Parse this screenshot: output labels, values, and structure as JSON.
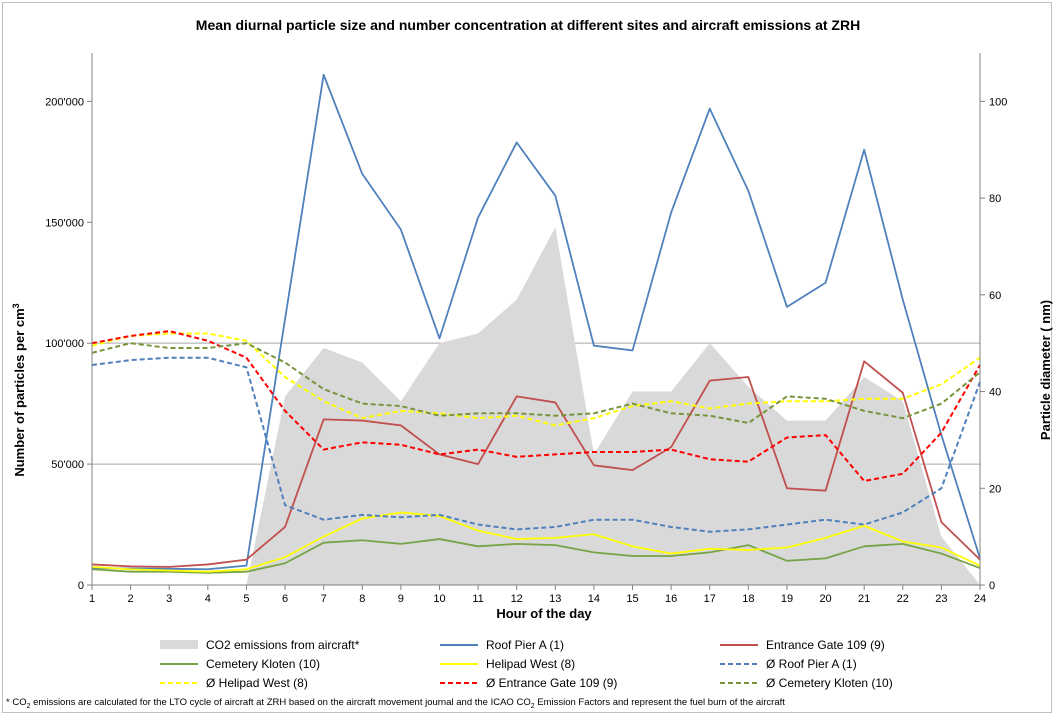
{
  "chart_data": {
    "type": "line",
    "title": "Mean diurnal particle size and number concentration at different sites and aircraft emissions at ZRH",
    "xlabel": "Hour of the day",
    "ylabel_left": "Number of particles per cm",
    "ylabel_left_sup": "3",
    "ylabel_right": "Particle diameter ( nm)",
    "x": [
      1,
      2,
      3,
      4,
      5,
      6,
      7,
      8,
      9,
      10,
      11,
      12,
      13,
      14,
      15,
      16,
      17,
      18,
      19,
      20,
      21,
      22,
      23,
      24
    ],
    "y_left_lim": [
      0,
      220000
    ],
    "y_left_ticks": [
      0,
      50000,
      100000,
      150000,
      200000
    ],
    "y_left_tick_labels": [
      "0",
      "50'000",
      "100'000",
      "150'000",
      "200'000"
    ],
    "y_right_lim": [
      0,
      110
    ],
    "y_right_ticks": [
      0,
      20,
      40,
      60,
      80,
      100
    ],
    "y_right_tick_labels": [
      "0",
      "20",
      "40",
      "60",
      "80",
      "100"
    ],
    "grid_left_values": [
      50000,
      100000
    ],
    "legend_position": "bottom",
    "series": [
      {
        "name": "CO2 emissions from aircraft*",
        "kind": "area",
        "axis": "right",
        "color": "#d9d9d9",
        "values": [
          0,
          0,
          0,
          0,
          0,
          39,
          49,
          46,
          38,
          50,
          52,
          59,
          74,
          27,
          40,
          40,
          50,
          41,
          34,
          34,
          43,
          38,
          10,
          0
        ]
      },
      {
        "name": "Roof Pier A (1)",
        "kind": "line",
        "axis": "left",
        "color": "#4f81bd",
        "dash": false,
        "values": [
          7000,
          6800,
          6700,
          6500,
          8000,
          110000,
          211000,
          170000,
          147000,
          102000,
          152000,
          183000,
          161000,
          99000,
          97000,
          154000,
          197000,
          163000,
          115000,
          125000,
          180000,
          118000,
          62000,
          11000
        ]
      },
      {
        "name": "Entrance Gate 109 (9)",
        "kind": "line",
        "axis": "left",
        "color": "#c0504d",
        "dash": false,
        "values": [
          8500,
          7700,
          7500,
          8500,
          10500,
          24000,
          68500,
          68000,
          66000,
          54000,
          50000,
          78000,
          75500,
          49500,
          47500,
          57000,
          84500,
          86000,
          40000,
          39000,
          92500,
          79500,
          26000,
          10500
        ]
      },
      {
        "name": "Cemetery Kloten (10)",
        "kind": "line",
        "axis": "left",
        "color": "#77a347",
        "dash": false,
        "values": [
          6500,
          5500,
          5500,
          5000,
          5500,
          9000,
          17500,
          18500,
          17000,
          19000,
          16000,
          17000,
          16500,
          13500,
          12000,
          12000,
          13500,
          16500,
          10000,
          11000,
          16000,
          17000,
          13000,
          7000
        ]
      },
      {
        "name": "Helipad West (8)",
        "kind": "line",
        "axis": "left",
        "color": "#ffff00",
        "dash": false,
        "values": [
          7500,
          6500,
          6000,
          5500,
          6500,
          11500,
          20000,
          27500,
          30000,
          28500,
          22500,
          19000,
          19500,
          21000,
          16000,
          13000,
          15000,
          14500,
          15500,
          19500,
          24500,
          18000,
          15500,
          8000
        ]
      },
      {
        "name": "Ø Roof Pier A (1)",
        "kind": "line",
        "axis": "right",
        "color": "#4f81bd",
        "dash": true,
        "values": [
          45.5,
          46.5,
          47,
          47,
          45,
          16.5,
          13.5,
          14.5,
          14,
          14.5,
          12.5,
          11.5,
          12,
          13.5,
          13.5,
          12,
          11,
          11.5,
          12.5,
          13.5,
          12.5,
          15,
          20,
          42
        ]
      },
      {
        "name": "Ø Helipad West (8)",
        "kind": "line",
        "axis": "right",
        "color": "#ffff00",
        "dash": true,
        "values": [
          49.5,
          51.5,
          52,
          52,
          50.5,
          43,
          38,
          34.5,
          36,
          35.5,
          34.5,
          35,
          33,
          34.5,
          37,
          38,
          36.5,
          37.5,
          38,
          38,
          38.5,
          38.5,
          41.5,
          47
        ]
      },
      {
        "name": "Ø Entrance Gate 109 (9)",
        "kind": "line",
        "axis": "right",
        "color": "#ff0000",
        "dash": true,
        "values": [
          50,
          51.5,
          52.5,
          50.5,
          47,
          36,
          28,
          29.5,
          29,
          27,
          28,
          26.5,
          27,
          27.5,
          27.5,
          28,
          26,
          25.5,
          30.5,
          31,
          21.5,
          23,
          31.5,
          45.5
        ]
      },
      {
        "name": "Ø Cemetery Kloten (10)",
        "kind": "line",
        "axis": "right",
        "color": "#77933c",
        "dash": true,
        "values": [
          48,
          50,
          49,
          49,
          50,
          46,
          40.5,
          37.5,
          37,
          35,
          35.5,
          35.5,
          35,
          35.5,
          37.5,
          35.5,
          35,
          33.5,
          39,
          38.5,
          36,
          34.5,
          37.5,
          44
        ]
      }
    ]
  },
  "legend_order": [
    0,
    1,
    2,
    3,
    4,
    5,
    6,
    7,
    8
  ],
  "footnote": {
    "p1": "* CO",
    "s1": "2",
    "p2": " emissions are calculated for the LTO cycle of aircraft at ZRH based on the aircraft movement journal and the ICAO CO",
    "s2": "2",
    "p3": " Emission Factors and represent the fuel burn of the aircraft"
  }
}
